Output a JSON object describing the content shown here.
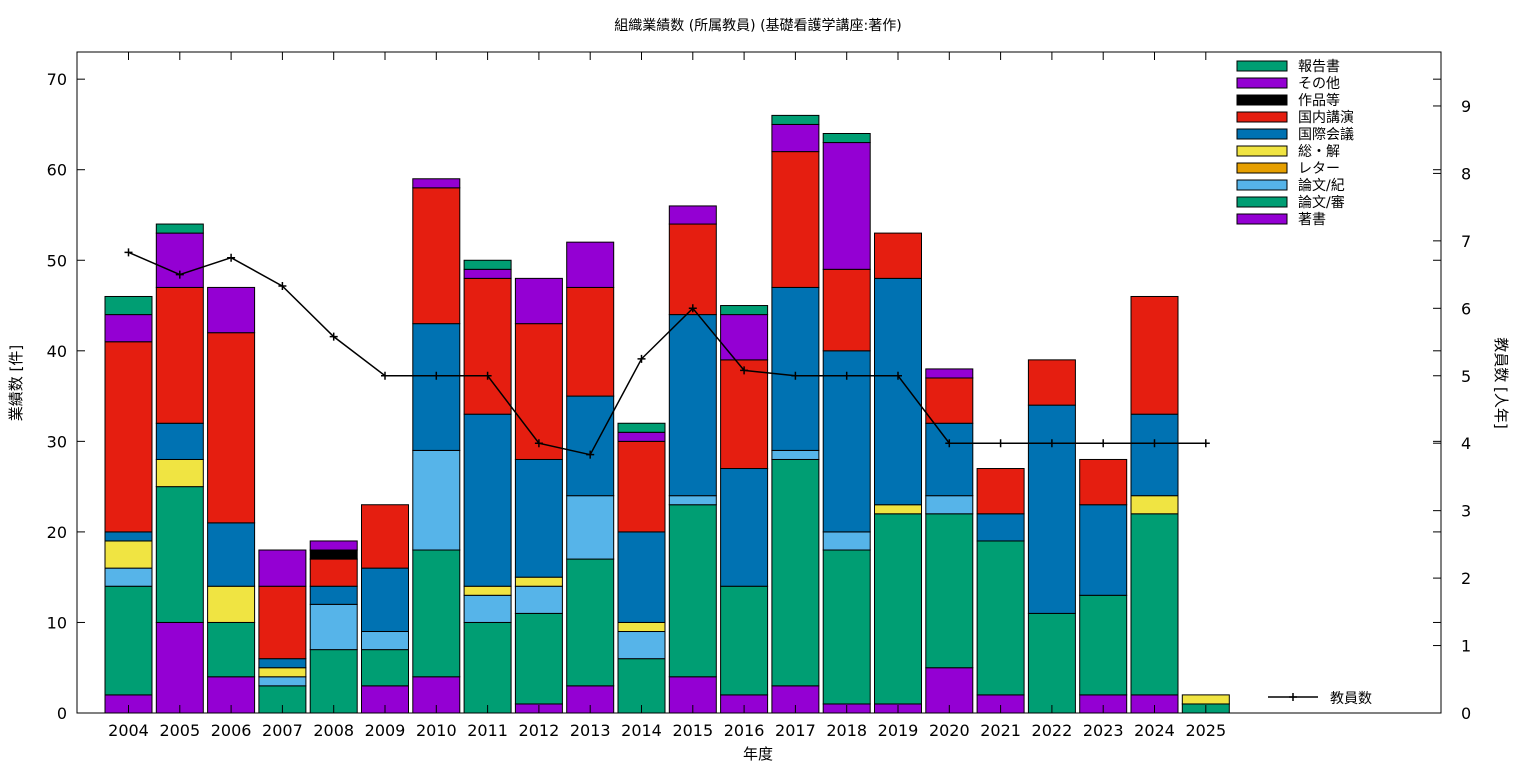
{
  "chart_data": {
    "type": "bar",
    "stacked": true,
    "title": "組織業績数 (所属教員) (基礎看護学講座:著作)",
    "xlabel": "年度",
    "ylabel": "業績数 [件]",
    "y2label": "教員数 [人年]",
    "categories": [
      "2004",
      "2005",
      "2006",
      "2007",
      "2008",
      "2009",
      "2010",
      "2011",
      "2012",
      "2013",
      "2014",
      "2015",
      "2016",
      "2017",
      "2018",
      "2019",
      "2020",
      "2021",
      "2022",
      "2023",
      "2024",
      "2025"
    ],
    "ylim": [
      0,
      73
    ],
    "y2lim": [
      0,
      9.8
    ],
    "yticks": [
      0,
      10,
      20,
      30,
      40,
      50,
      60,
      70
    ],
    "y2ticks": [
      0,
      1,
      2,
      3,
      4,
      5,
      6,
      7,
      8,
      9
    ],
    "grid": false,
    "legend_position": "top-right",
    "series": [
      {
        "name": "著書",
        "color": "#9400d3",
        "values": [
          2,
          10,
          4,
          0,
          0,
          3,
          4,
          0,
          1,
          3,
          0,
          4,
          2,
          3,
          1,
          1,
          5,
          2,
          0,
          2,
          2,
          0
        ]
      },
      {
        "name": "論文/審",
        "color": "#009e73",
        "values": [
          12,
          15,
          6,
          3,
          7,
          4,
          14,
          10,
          10,
          14,
          6,
          19,
          12,
          25,
          17,
          21,
          17,
          17,
          11,
          11,
          20,
          1
        ]
      },
      {
        "name": "論文/紀",
        "color": "#56b4e9",
        "values": [
          2,
          0,
          0,
          1,
          5,
          2,
          11,
          3,
          3,
          7,
          3,
          1,
          0,
          1,
          2,
          0,
          2,
          0,
          0,
          0,
          0,
          0
        ]
      },
      {
        "name": "レター",
        "color": "#e69f00",
        "values": [
          0,
          0,
          0,
          0,
          0,
          0,
          0,
          0,
          0,
          0,
          0,
          0,
          0,
          0,
          0,
          0,
          0,
          0,
          0,
          0,
          0,
          0
        ]
      },
      {
        "name": "総・解",
        "color": "#f0e442",
        "values": [
          3,
          3,
          4,
          1,
          0,
          0,
          0,
          1,
          1,
          0,
          1,
          0,
          0,
          0,
          0,
          1,
          0,
          0,
          0,
          0,
          2,
          1
        ]
      },
      {
        "name": "国際会議",
        "color": "#0072b2",
        "values": [
          1,
          4,
          7,
          1,
          2,
          7,
          14,
          19,
          13,
          11,
          10,
          20,
          13,
          18,
          20,
          25,
          8,
          3,
          23,
          10,
          9,
          0
        ]
      },
      {
        "name": "国内講演",
        "color": "#e51e10",
        "values": [
          21,
          15,
          21,
          8,
          3,
          7,
          15,
          15,
          15,
          12,
          10,
          10,
          12,
          15,
          9,
          5,
          5,
          5,
          5,
          5,
          13,
          0
        ]
      },
      {
        "name": "作品等",
        "color": "#000000",
        "values": [
          0,
          0,
          0,
          0,
          1,
          0,
          0,
          0,
          0,
          0,
          0,
          0,
          0,
          0,
          0,
          0,
          0,
          0,
          0,
          0,
          0,
          0
        ]
      },
      {
        "name": "その他",
        "color": "#9400d3",
        "values": [
          3,
          6,
          5,
          4,
          1,
          0,
          1,
          1,
          5,
          5,
          1,
          2,
          5,
          3,
          14,
          0,
          1,
          0,
          0,
          0,
          0,
          0
        ]
      },
      {
        "name": "報告書",
        "color": "#009e73",
        "values": [
          2,
          1,
          0,
          0,
          0,
          0,
          0,
          1,
          0,
          0,
          1,
          0,
          1,
          1,
          1,
          0,
          0,
          0,
          0,
          0,
          0,
          0
        ]
      }
    ],
    "line_series": {
      "name": "教員数",
      "color": "#000000",
      "axis": "y2",
      "values": [
        6.83,
        6.5,
        6.75,
        6.33,
        5.58,
        5,
        5,
        5,
        4,
        3.83,
        5.25,
        6,
        5.08,
        5,
        5,
        5,
        4,
        4,
        4,
        4,
        4,
        4
      ]
    }
  }
}
